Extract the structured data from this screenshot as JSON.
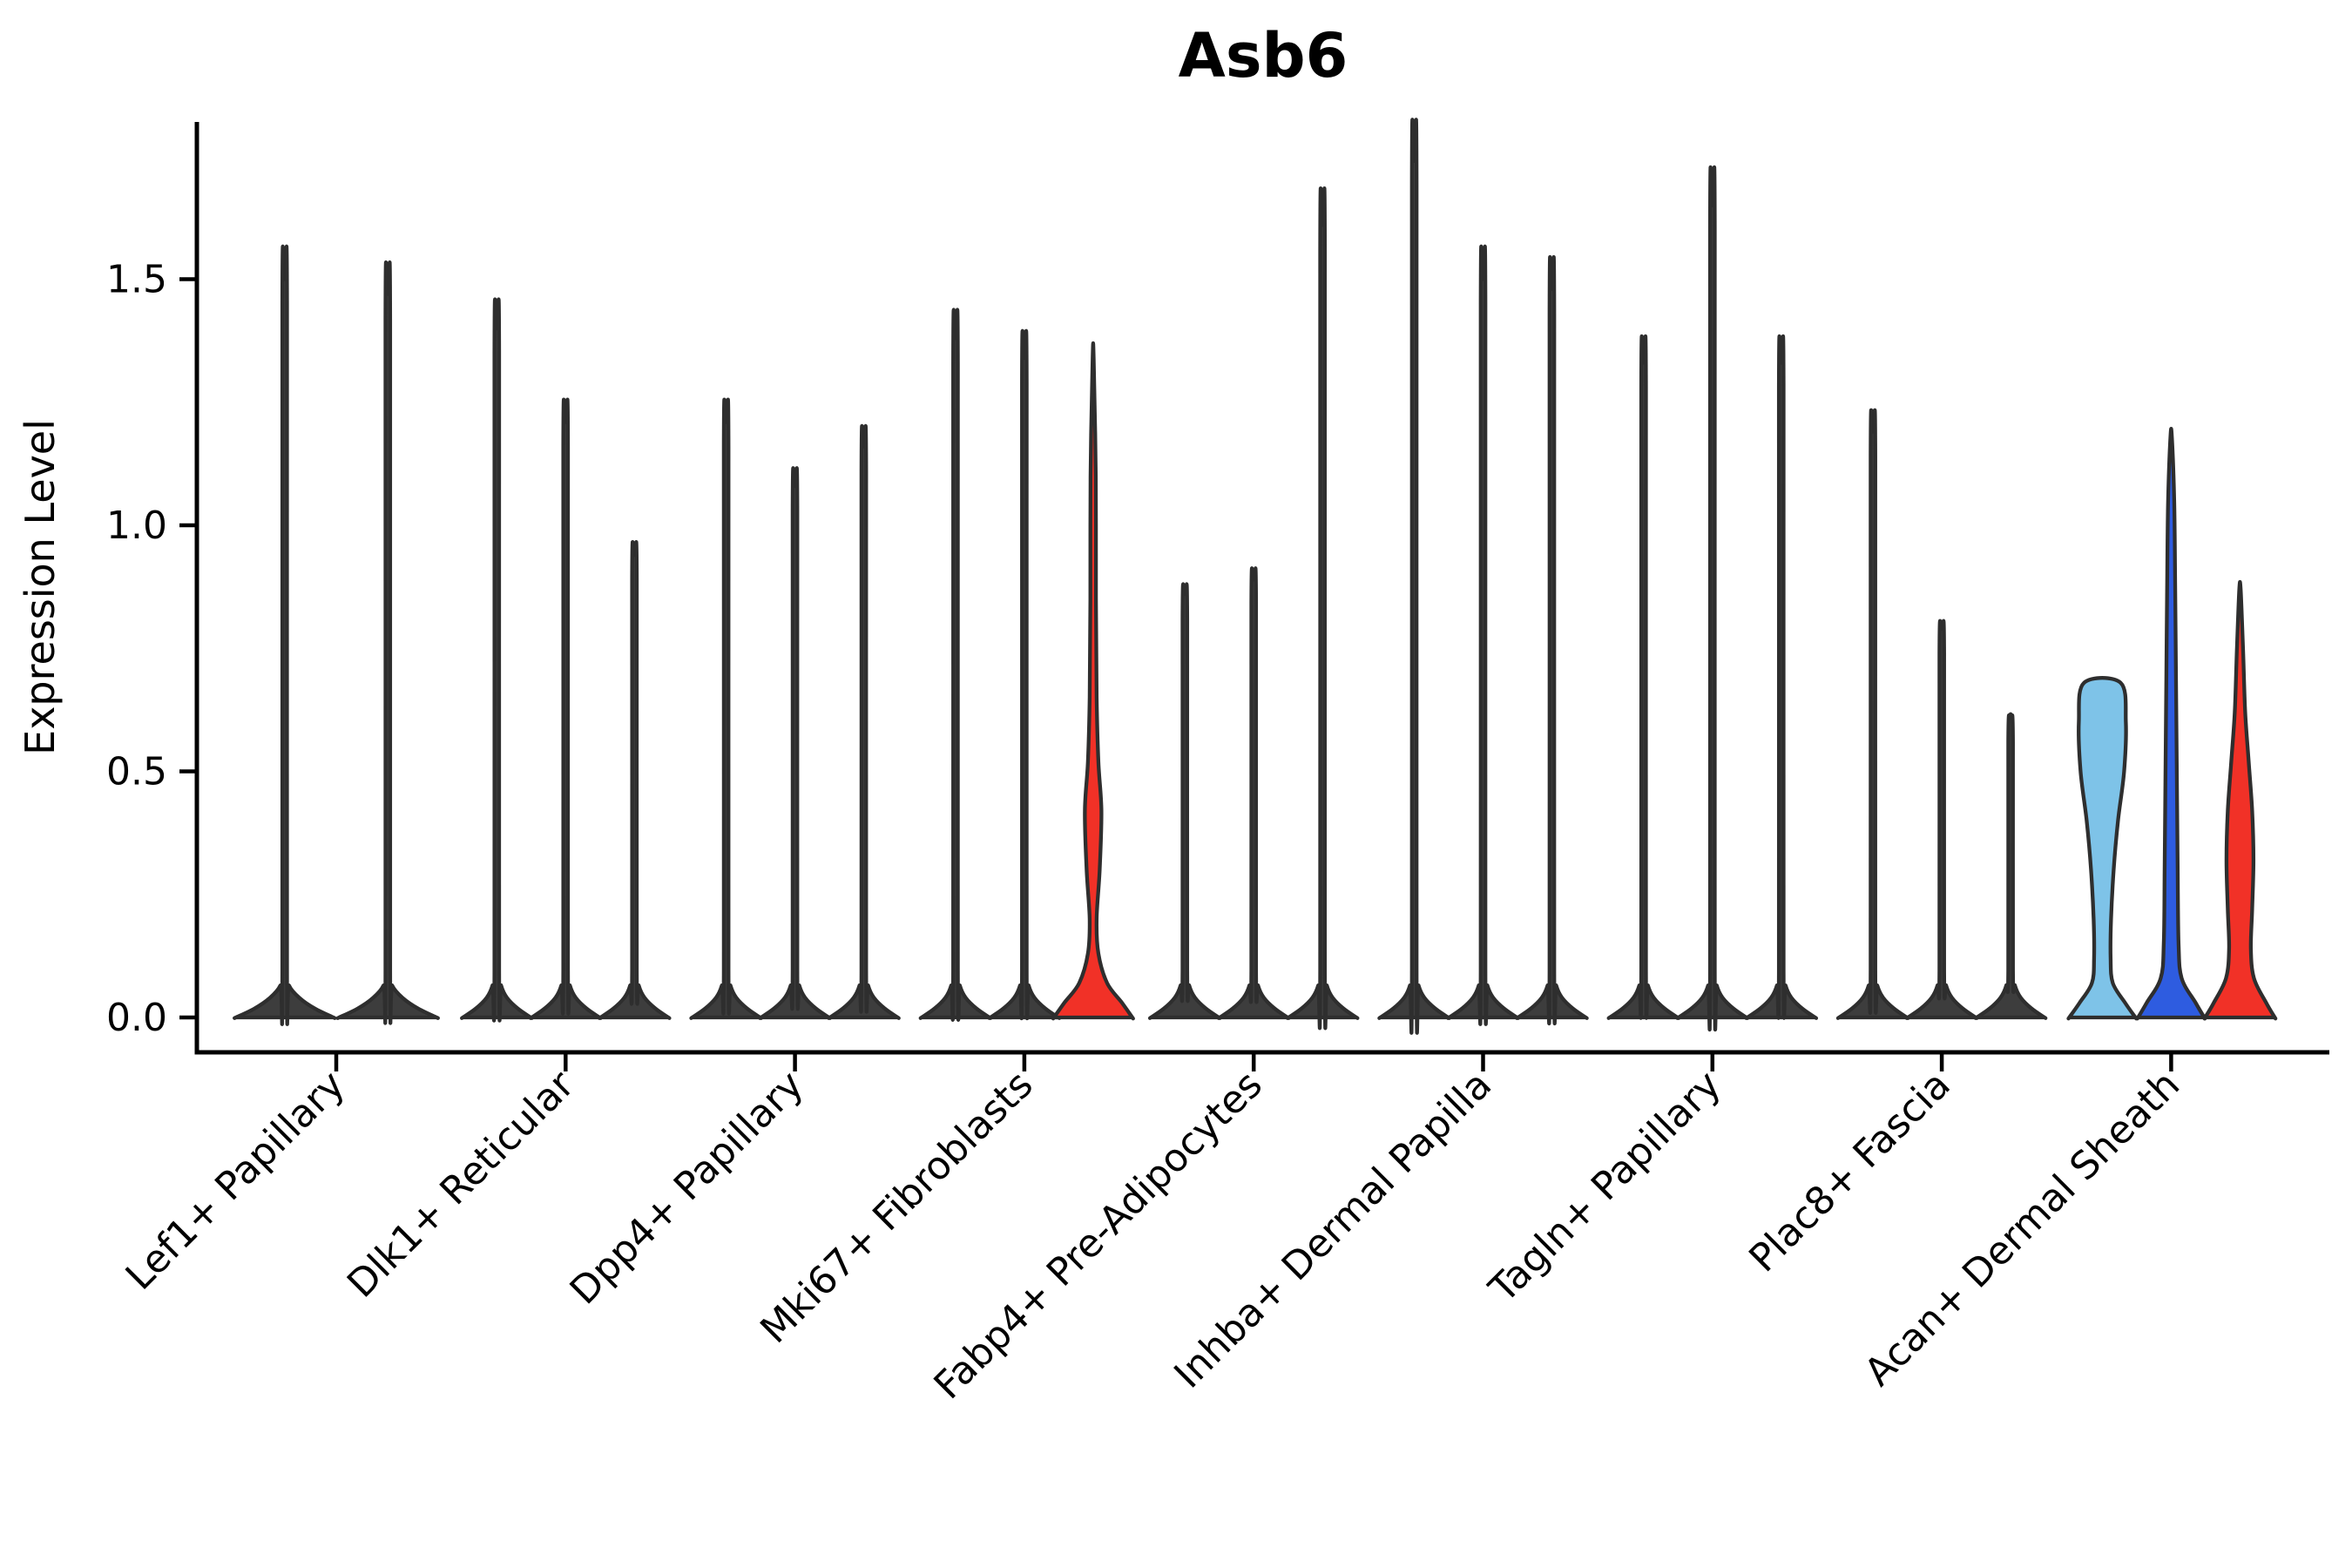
{
  "colors": {
    "outline": "#2e2e2e",
    "default_fill": "#3d3d3d",
    "axis": "#000000",
    "red": "#f13127",
    "blue": "#2e5ce0",
    "lightblue": "#7ec3e8",
    "background": "#ffffff"
  },
  "chart_data": {
    "type": "violin",
    "title": "Asb6",
    "ylabel": "Expression Level",
    "xlabel": "",
    "ylim": [
      0,
      1.82
    ],
    "yticks": [
      "0.0",
      "0.5",
      "1.0",
      "1.5"
    ],
    "ytick_values": [
      0,
      0.5,
      1.0,
      1.5
    ],
    "grid": false,
    "legend": null,
    "categories": [
      "Lef1+ Papillary",
      "Dlk1+ Reticular",
      "Dpp4+ Papillary",
      "Mki67+ Fibroblasts",
      "Fabp4+ Pre-Adipocytes",
      "Inhba+ Dermal Papilla",
      "Tagln+ Papillary",
      "Plac8+ Fascia",
      "Acan+ Dermal Sheath"
    ],
    "groups": [
      {
        "category": "Lef1+ Papillary",
        "violins": [
          {
            "max": 1.5,
            "fill": "default",
            "shape": "spike"
          },
          {
            "max": 1.47,
            "fill": "default",
            "shape": "spike"
          }
        ]
      },
      {
        "category": "Dlk1+ Reticular",
        "violins": [
          {
            "max": 1.4,
            "fill": "default",
            "shape": "spike"
          },
          {
            "max": 1.21,
            "fill": "default",
            "shape": "spike"
          },
          {
            "max": 0.94,
            "fill": "default",
            "shape": "spike"
          }
        ]
      },
      {
        "category": "Dpp4+ Papillary",
        "violins": [
          {
            "max": 1.21,
            "fill": "default",
            "shape": "spike"
          },
          {
            "max": 1.08,
            "fill": "default",
            "shape": "spike"
          },
          {
            "max": 1.16,
            "fill": "default",
            "shape": "spike"
          }
        ]
      },
      {
        "category": "Mki67+ Fibroblasts",
        "violins": [
          {
            "max": 1.38,
            "fill": "default",
            "shape": "spike"
          },
          {
            "max": 1.34,
            "fill": "default",
            "shape": "spike"
          },
          {
            "max": 1.34,
            "fill": "red",
            "shape": "red_narrow"
          }
        ]
      },
      {
        "category": "Fabp4+ Pre-Adipocytes",
        "violins": [
          {
            "max": 0.86,
            "fill": "default",
            "shape": "spike"
          },
          {
            "max": 0.89,
            "fill": "default",
            "shape": "spike"
          },
          {
            "max": 1.61,
            "fill": "default",
            "shape": "spike"
          }
        ]
      },
      {
        "category": "Inhba+ Dermal Papilla",
        "violins": [
          {
            "max": 1.74,
            "fill": "default",
            "shape": "spike"
          },
          {
            "max": 1.5,
            "fill": "default",
            "shape": "spike"
          },
          {
            "max": 1.48,
            "fill": "default",
            "shape": "spike"
          }
        ]
      },
      {
        "category": "Tagln+ Papillary",
        "violins": [
          {
            "max": 1.33,
            "fill": "default",
            "shape": "spike"
          },
          {
            "max": 1.65,
            "fill": "default",
            "shape": "spike"
          },
          {
            "max": 1.33,
            "fill": "default",
            "shape": "spike"
          }
        ]
      },
      {
        "category": "Plac8+ Fascia",
        "violins": [
          {
            "max": 1.19,
            "fill": "default",
            "shape": "spike"
          },
          {
            "max": 0.79,
            "fill": "default",
            "shape": "spike"
          },
          {
            "max": 0.61,
            "fill": "default",
            "shape": "spike"
          }
        ]
      },
      {
        "category": "Acan+ Dermal Sheath",
        "violins": [
          {
            "max": 0.68,
            "fill": "lightblue",
            "shape": "wide_lightblue"
          },
          {
            "max": 1.18,
            "fill": "blue",
            "shape": "blue_col"
          },
          {
            "max": 0.87,
            "fill": "red",
            "shape": "red_wide"
          }
        ]
      }
    ],
    "profiles": {
      "red_narrow": [
        [
          0,
          45
        ],
        [
          0.03,
          33
        ],
        [
          0.07,
          16
        ],
        [
          0.13,
          6
        ],
        [
          0.2,
          4
        ],
        [
          0.3,
          7.5
        ],
        [
          0.42,
          9.5
        ],
        [
          0.52,
          6
        ],
        [
          0.65,
          4
        ],
        [
          0.85,
          3.2
        ],
        [
          1.1,
          3
        ],
        [
          1.34,
          0.6
        ]
      ],
      "wide_lightblue": [
        [
          0,
          38
        ],
        [
          0.03,
          26
        ],
        [
          0.07,
          12
        ],
        [
          0.12,
          9.5
        ],
        [
          0.2,
          10
        ],
        [
          0.3,
          13
        ],
        [
          0.4,
          18
        ],
        [
          0.5,
          25
        ],
        [
          0.6,
          27
        ],
        [
          0.68,
          21
        ]
      ],
      "blue_col": [
        [
          0,
          38
        ],
        [
          0.03,
          28
        ],
        [
          0.08,
          12
        ],
        [
          0.15,
          8.5
        ],
        [
          0.3,
          7.5
        ],
        [
          0.5,
          6.5
        ],
        [
          0.7,
          5.5
        ],
        [
          0.9,
          4.5
        ],
        [
          1.05,
          3.5
        ],
        [
          1.18,
          0.8
        ]
      ],
      "red_wide": [
        [
          0,
          40
        ],
        [
          0.03,
          30
        ],
        [
          0.08,
          16
        ],
        [
          0.14,
          12.5
        ],
        [
          0.22,
          14
        ],
        [
          0.32,
          15.5
        ],
        [
          0.42,
          14
        ],
        [
          0.52,
          10
        ],
        [
          0.62,
          6
        ],
        [
          0.75,
          3.5
        ],
        [
          0.87,
          0.8
        ]
      ]
    },
    "flat_top_shapes": [
      "wide_lightblue"
    ]
  }
}
